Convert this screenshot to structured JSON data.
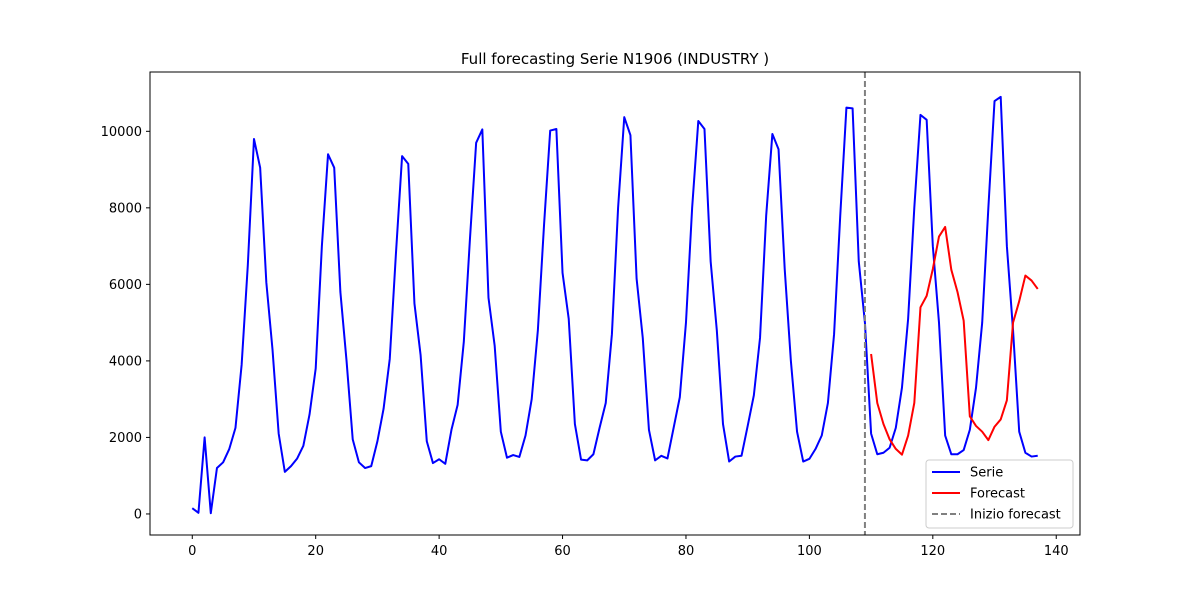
{
  "chart_data": {
    "type": "line",
    "title": "Full forecasting Serie N1906 (INDUSTRY    )",
    "xlabel": "",
    "ylabel": "",
    "xlim": [
      -6.85,
      143.85
    ],
    "ylim": [
      -550,
      11550
    ],
    "xticks": [
      0,
      20,
      40,
      60,
      80,
      100,
      120,
      140
    ],
    "yticks": [
      0,
      2000,
      4000,
      6000,
      8000,
      10000
    ],
    "grid": false,
    "legend_position": "lower-right",
    "series": [
      {
        "name": "Serie",
        "color": "#0000ff",
        "x_start": 0,
        "values": [
          150,
          30,
          2000,
          20,
          1200,
          1350,
          1700,
          2250,
          3900,
          6500,
          9800,
          9050,
          6050,
          4300,
          2100,
          1100,
          1250,
          1450,
          1780,
          2600,
          3800,
          7000,
          9400,
          9050,
          5800,
          4000,
          1950,
          1350,
          1200,
          1250,
          1900,
          2750,
          4050,
          6800,
          9350,
          9150,
          5500,
          4150,
          1900,
          1330,
          1430,
          1310,
          2200,
          2850,
          4500,
          7200,
          9700,
          10050,
          5650,
          4400,
          2150,
          1470,
          1540,
          1490,
          2050,
          3000,
          4800,
          7550,
          10020,
          10060,
          6300,
          5100,
          2350,
          1420,
          1400,
          1560,
          2250,
          2900,
          4700,
          8000,
          10370,
          9900,
          6150,
          4600,
          2200,
          1400,
          1520,
          1450,
          2250,
          3050,
          5000,
          8000,
          10270,
          10060,
          6600,
          4800,
          2350,
          1370,
          1500,
          1520,
          2300,
          3100,
          4600,
          7800,
          9930,
          9530,
          6400,
          4000,
          2150,
          1370,
          1440,
          1700,
          2050,
          2900,
          4700,
          7800,
          10620,
          10600,
          6600,
          5000,
          2100,
          1560,
          1600,
          1730,
          2250,
          3300,
          5100,
          8000,
          10430,
          10300,
          7000,
          5000,
          2050,
          1560,
          1560,
          1670,
          2200,
          3300,
          5000,
          8000,
          10790,
          10900,
          7000,
          4800,
          2150,
          1600,
          1500,
          1520
        ]
      },
      {
        "name": "Forecast",
        "color": "#ff0000",
        "x_start": 110,
        "values": [
          4180,
          2900,
          2350,
          1950,
          1700,
          1550,
          2050,
          2900,
          5400,
          5700,
          6400,
          7250,
          7500,
          6380,
          5800,
          5050,
          2550,
          2300,
          2150,
          1930,
          2280,
          2470,
          2970,
          5000,
          5560,
          6230,
          6100,
          5880
        ]
      }
    ],
    "vline": {
      "name": "Inizio forecast",
      "x": 109,
      "color": "#808080",
      "style": "dashed"
    }
  }
}
